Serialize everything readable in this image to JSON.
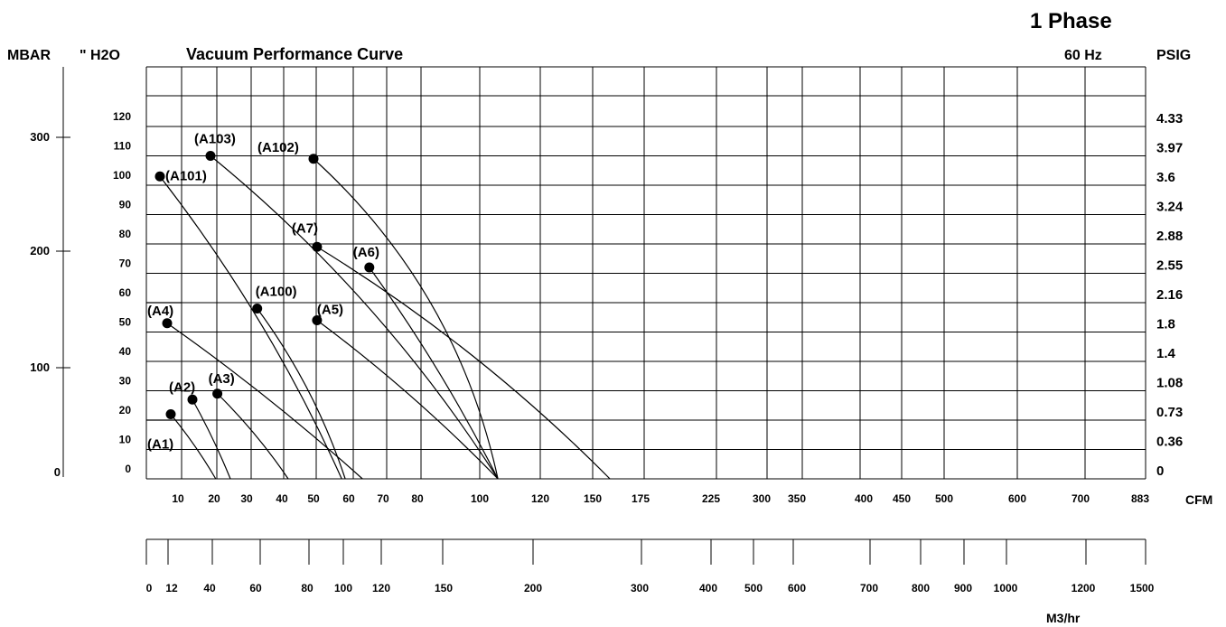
{
  "header": {
    "phase": "1 Phase",
    "title": "Vacuum Performance Curve",
    "frequency": "60 Hz",
    "left_unit_mbar": "MBAR",
    "left_unit_h2o": "\" H2O",
    "right_unit_psig": "PSIG",
    "x_unit_cfm": "CFM",
    "x_unit_m3hr": "M3/hr"
  },
  "chart_data": {
    "type": "line",
    "title": "Vacuum Performance Curve",
    "xlabel": "CFM",
    "ylabel": "\" H2O",
    "x_scale": "non-uniform (custom tick spacing)",
    "grid": true,
    "cfm_ticks": [
      "10",
      "20",
      "30",
      "40",
      "50",
      "60",
      "70",
      "80",
      "100",
      "120",
      "150",
      "175",
      "225",
      "300",
      "350",
      "400",
      "450",
      "500",
      "600",
      "700",
      "883"
    ],
    "h2o_ticks": [
      "0",
      "10",
      "20",
      "30",
      "40",
      "50",
      "60",
      "70",
      "80",
      "90",
      "100",
      "110",
      "120"
    ],
    "psig_ticks": [
      "0",
      "0.36",
      "0.73",
      "1.08",
      "1.4",
      "1.8",
      "2.16",
      "2.55",
      "2.88",
      "3.24",
      "3.6",
      "3.97",
      "4.33"
    ],
    "mbar_ticks": [
      "0",
      "100",
      "200",
      "300"
    ],
    "m3hr_ticks": [
      "0",
      "12",
      "40",
      "60",
      "80",
      "100",
      "120",
      "150",
      "200",
      "300",
      "400",
      "500",
      "600",
      "700",
      "800",
      "900",
      "1000",
      "1200",
      "1500"
    ],
    "series": [
      {
        "name": "(A1)",
        "marker": [
          8,
          22
        ],
        "end_cfm": 20.5
      },
      {
        "name": "(A2)",
        "marker": [
          14,
          27
        ],
        "end_cfm": 25
      },
      {
        "name": "(A3)",
        "marker": [
          21,
          29
        ],
        "end_cfm": 42
      },
      {
        "name": "(A4)",
        "marker": [
          7,
          53
        ],
        "end_cfm": 64
      },
      {
        "name": "(A5)",
        "marker": [
          51,
          54
        ],
        "end_cfm": 106
      },
      {
        "name": "(A6)",
        "marker": [
          66,
          72
        ],
        "end_cfm": 106
      },
      {
        "name": "(A7)",
        "marker": [
          51,
          79
        ],
        "end_cfm": 159
      },
      {
        "name": "(A100)",
        "marker": [
          33,
          58
        ],
        "end_cfm": 59
      },
      {
        "name": "(A101)",
        "marker": [
          5,
          103
        ],
        "end_cfm": 58
      },
      {
        "name": "(A102)",
        "marker": [
          50,
          109
        ],
        "end_cfm": 106
      },
      {
        "name": "(A103)",
        "marker": [
          19,
          110
        ],
        "end_cfm": 106
      }
    ]
  }
}
